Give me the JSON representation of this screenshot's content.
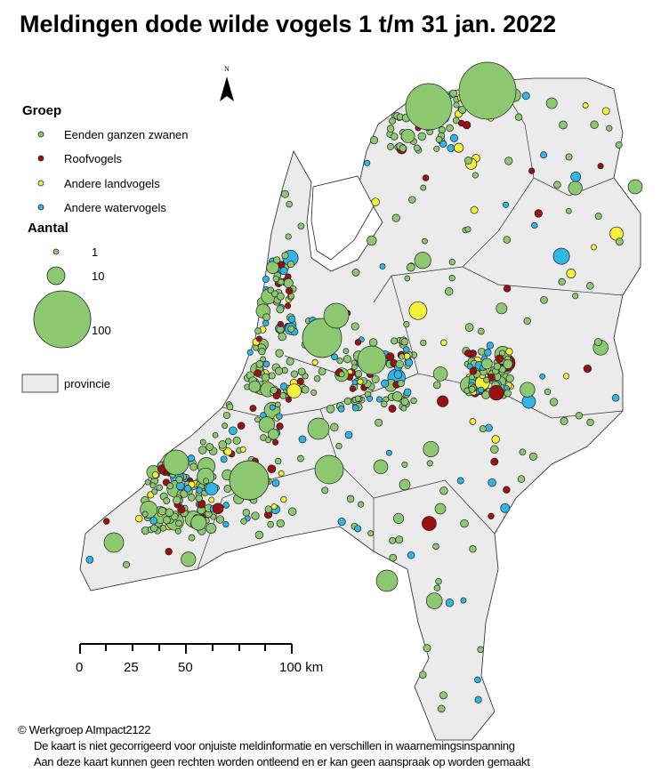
{
  "title": "Meldingen dode wilde vogels 1 t/m 31 jan. 2022",
  "north_arrow": {
    "label": "N",
    "icon": "north-arrow-icon"
  },
  "legend": {
    "group_title": "Groep",
    "groups": [
      {
        "label": "Eenden ganzen zwanen",
        "color": "#8cc870"
      },
      {
        "label": "Roofvogels",
        "color": "#9b1111"
      },
      {
        "label": "Andere landvogels",
        "color": "#f5f03a"
      },
      {
        "label": "Andere watervogels",
        "color": "#2fb6e6"
      }
    ],
    "size_title": "Aantal",
    "sizes": [
      {
        "label": "1",
        "value": 1
      },
      {
        "label": "10",
        "value": 10
      },
      {
        "label": "100",
        "value": 100
      }
    ],
    "province_label": "provincie",
    "province_color": "#ebebeb"
  },
  "scalebar": {
    "ticks": [
      "0",
      "25",
      "50",
      "100 km"
    ],
    "max_km": 100
  },
  "footer": {
    "copyright": "© Werkgroep AImpact2122",
    "line1": "De kaart is niet gecorrigeerd voor onjuiste meldinformatie en verschillen in waarnemingsinspanning",
    "line2": "Aan deze kaart kunnen geen rechten worden ontleend en er kan geen aanspraak op worden gemaakt"
  }
}
